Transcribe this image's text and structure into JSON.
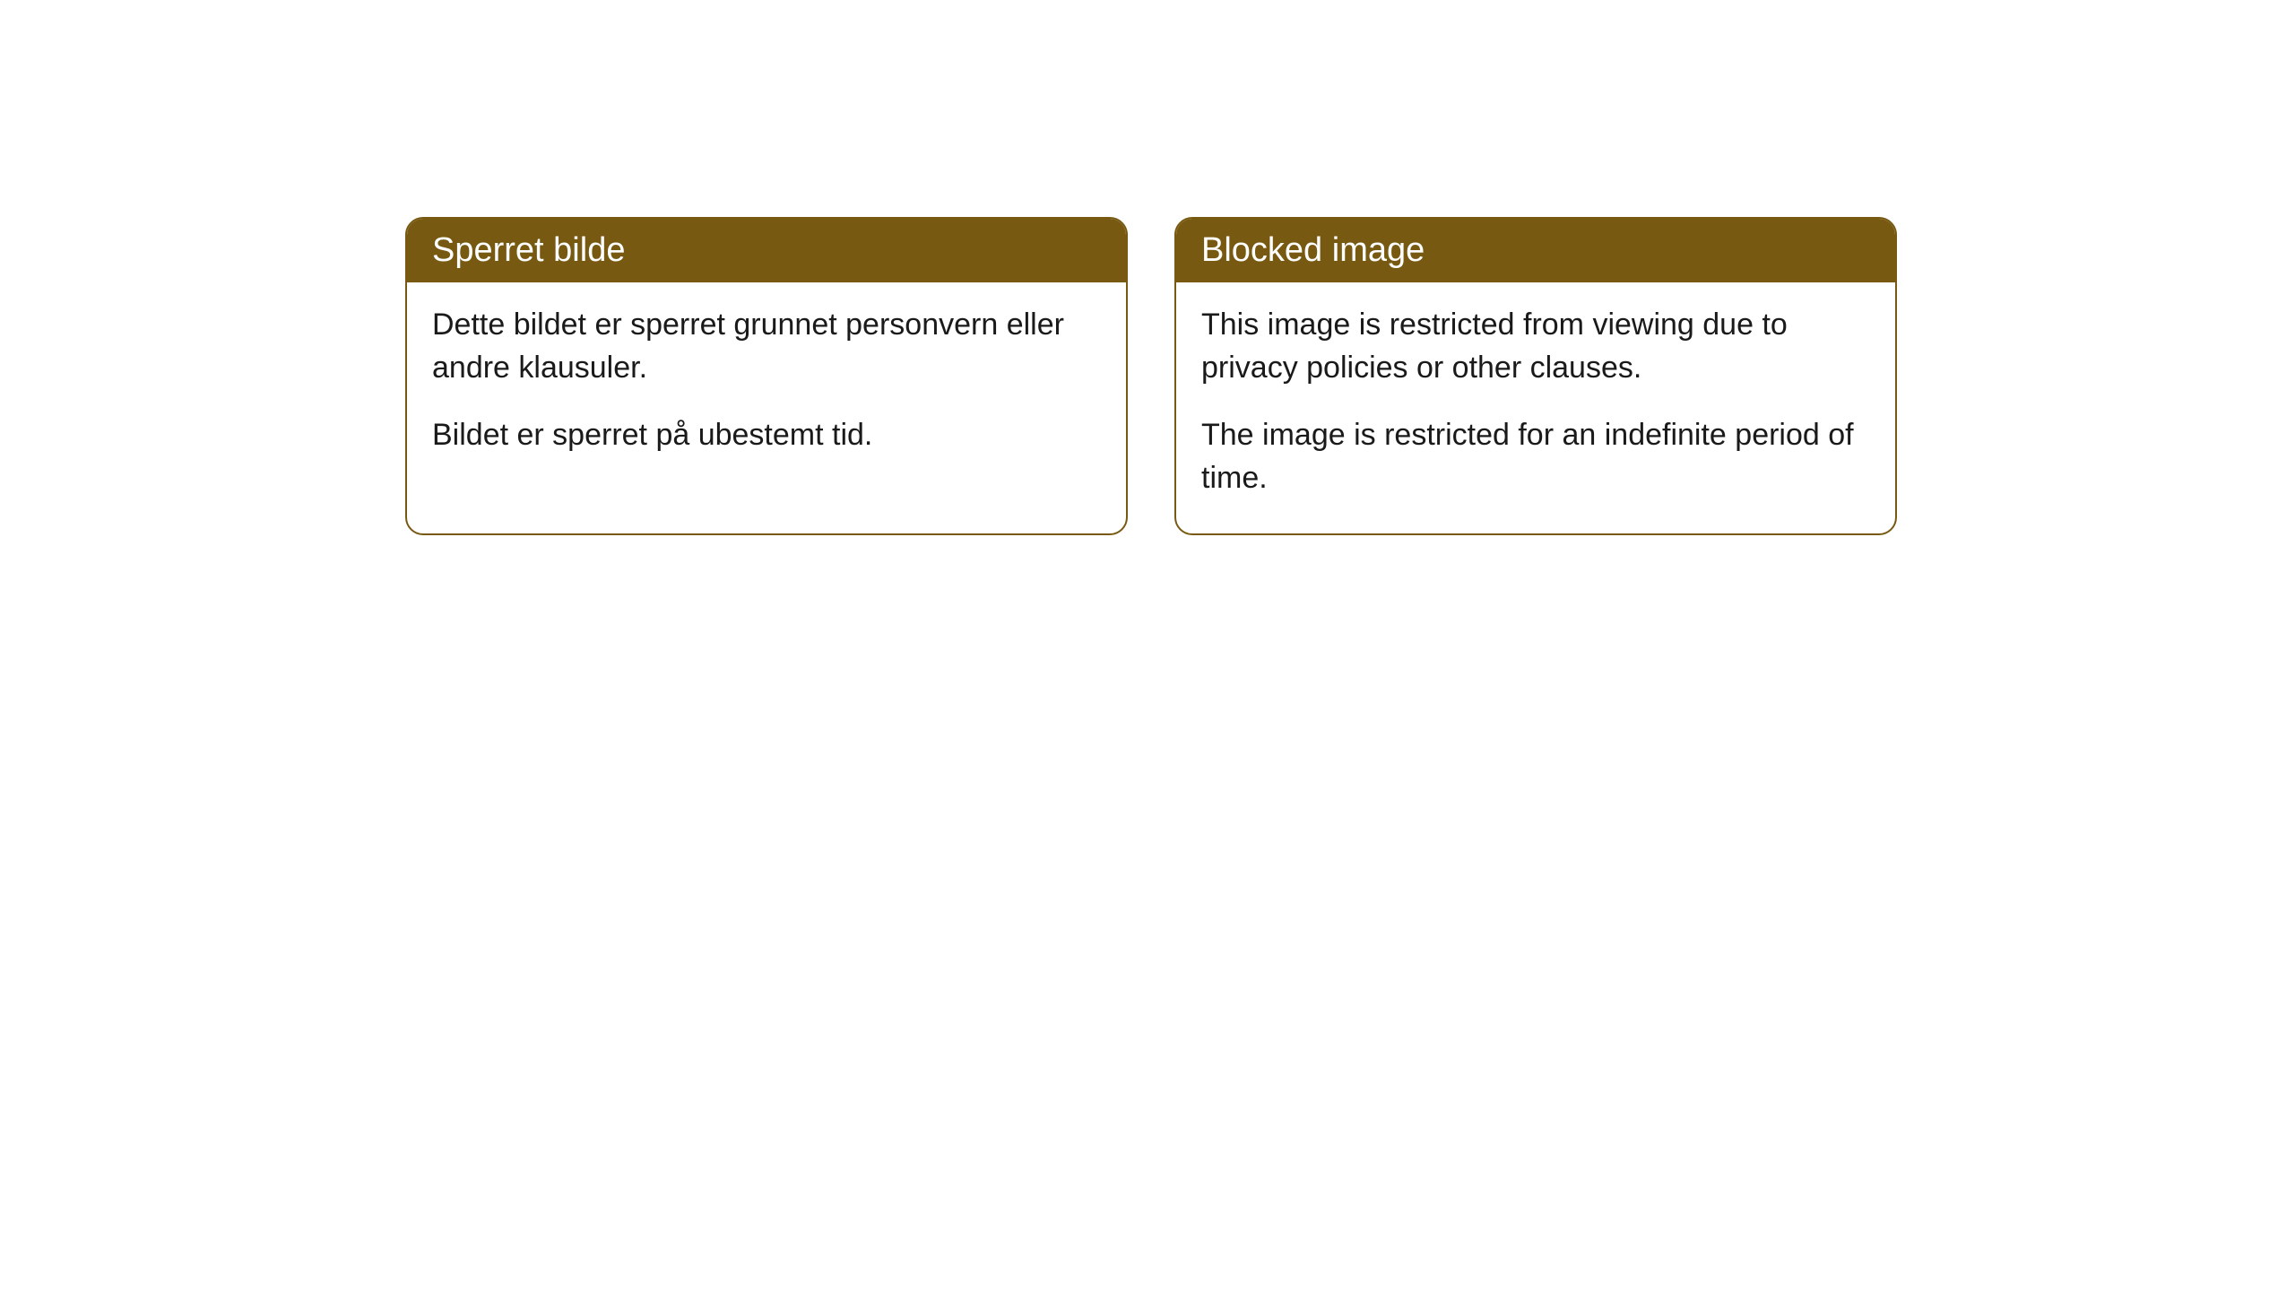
{
  "cards": {
    "norwegian": {
      "title": "Sperret bilde",
      "paragraph1": "Dette bildet er sperret grunnet personvern eller andre klausuler.",
      "paragraph2": "Bildet er sperret på ubestemt tid."
    },
    "english": {
      "title": "Blocked image",
      "paragraph1": "This image is restricted from viewing due to privacy policies or other clauses.",
      "paragraph2": "The image is restricted for an indefinite period of time."
    }
  },
  "styling": {
    "header_background": "#785911",
    "header_text_color": "#ffffff",
    "border_color": "#785911",
    "body_background": "#ffffff",
    "body_text_color": "#1a1a1a",
    "border_radius": 20,
    "header_fontsize": 38,
    "body_fontsize": 34
  }
}
